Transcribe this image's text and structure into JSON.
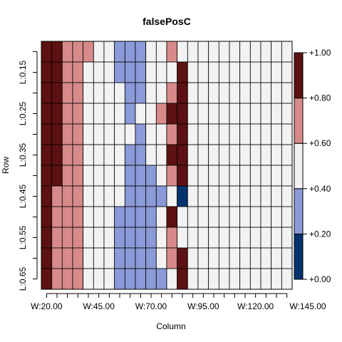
{
  "chart_data": {
    "type": "heatmap",
    "title": "falsePosC",
    "xlabel": "Column",
    "ylabel": "Row",
    "x_tick_labels": [
      "W:20.00",
      "W:45.00",
      "W:70.00",
      "W:95.00",
      "W:120.00",
      "W:145.00"
    ],
    "y_tick_labels": [
      "L:0.15",
      "L:0.25",
      "L:0.35",
      "L:0.45",
      "L:0.55",
      "L:0.65"
    ],
    "color_scale": {
      "breaks": [
        0.0,
        0.2,
        0.4,
        0.6,
        0.8,
        1.0
      ],
      "colors": [
        "#00336e",
        "#8b9ad8",
        "#f2f2f2",
        "#d88a8a",
        "#5c1212"
      ],
      "tick_labels": [
        "+0.00",
        "+0.20",
        "+0.40",
        "+0.60",
        "+0.80",
        "+1.00"
      ]
    },
    "n_columns": 24,
    "n_rows": 12,
    "rows": [
      [
        0.9,
        0.9,
        0.7,
        0.7,
        0.7,
        0.5,
        0.5,
        0.3,
        0.3,
        0.3,
        0.5,
        0.5,
        0.7,
        0.5,
        0.5,
        0.5,
        0.5,
        0.5,
        0.5,
        0.5,
        0.5,
        0.5,
        0.5,
        0.5
      ],
      [
        0.9,
        0.9,
        0.7,
        0.7,
        0.5,
        0.5,
        0.5,
        0.3,
        0.3,
        0.3,
        0.5,
        0.5,
        0.5,
        0.9,
        0.5,
        0.5,
        0.5,
        0.5,
        0.5,
        0.5,
        0.5,
        0.5,
        0.5,
        0.5
      ],
      [
        0.9,
        0.9,
        0.7,
        0.7,
        0.5,
        0.5,
        0.5,
        0.5,
        0.3,
        0.3,
        0.5,
        0.5,
        0.7,
        0.9,
        0.5,
        0.5,
        0.5,
        0.5,
        0.5,
        0.5,
        0.5,
        0.5,
        0.5,
        0.5
      ],
      [
        0.9,
        0.9,
        0.7,
        0.7,
        0.5,
        0.5,
        0.5,
        0.5,
        0.3,
        0.5,
        0.5,
        0.7,
        0.9,
        0.9,
        0.5,
        0.5,
        0.5,
        0.5,
        0.5,
        0.5,
        0.5,
        0.5,
        0.5,
        0.5
      ],
      [
        0.9,
        0.9,
        0.7,
        0.7,
        0.5,
        0.5,
        0.5,
        0.5,
        0.5,
        0.3,
        0.5,
        0.5,
        0.7,
        0.9,
        0.5,
        0.5,
        0.5,
        0.5,
        0.5,
        0.5,
        0.5,
        0.5,
        0.5,
        0.5
      ],
      [
        0.9,
        0.9,
        0.7,
        0.7,
        0.5,
        0.5,
        0.5,
        0.5,
        0.3,
        0.3,
        0.5,
        0.5,
        0.9,
        0.9,
        0.5,
        0.5,
        0.5,
        0.5,
        0.5,
        0.5,
        0.5,
        0.5,
        0.5,
        0.5
      ],
      [
        0.9,
        0.9,
        0.7,
        0.7,
        0.5,
        0.5,
        0.5,
        0.5,
        0.3,
        0.3,
        0.3,
        0.5,
        0.7,
        0.9,
        0.5,
        0.5,
        0.5,
        0.5,
        0.5,
        0.5,
        0.5,
        0.5,
        0.5,
        0.5
      ],
      [
        0.9,
        0.7,
        0.7,
        0.7,
        0.5,
        0.5,
        0.5,
        0.5,
        0.3,
        0.3,
        0.3,
        0.3,
        0.5,
        0.1,
        0.5,
        0.5,
        0.5,
        0.5,
        0.5,
        0.5,
        0.5,
        0.5,
        0.5,
        0.5
      ],
      [
        0.9,
        0.7,
        0.7,
        0.7,
        0.5,
        0.5,
        0.5,
        0.3,
        0.3,
        0.3,
        0.3,
        0.5,
        0.9,
        0.5,
        0.5,
        0.5,
        0.5,
        0.5,
        0.5,
        0.5,
        0.5,
        0.5,
        0.5,
        0.5
      ],
      [
        0.9,
        0.7,
        0.7,
        0.7,
        0.5,
        0.5,
        0.5,
        0.3,
        0.3,
        0.3,
        0.3,
        0.5,
        0.7,
        0.5,
        0.5,
        0.5,
        0.5,
        0.5,
        0.5,
        0.5,
        0.5,
        0.5,
        0.5,
        0.5
      ],
      [
        0.9,
        0.7,
        0.7,
        0.7,
        0.5,
        0.5,
        0.5,
        0.3,
        0.3,
        0.3,
        0.3,
        0.5,
        0.7,
        0.9,
        0.5,
        0.5,
        0.5,
        0.5,
        0.5,
        0.5,
        0.5,
        0.5,
        0.5,
        0.5
      ],
      [
        0.9,
        0.7,
        0.7,
        0.7,
        0.5,
        0.5,
        0.5,
        0.3,
        0.3,
        0.3,
        0.3,
        0.3,
        0.5,
        0.9,
        0.5,
        0.5,
        0.5,
        0.5,
        0.5,
        0.5,
        0.5,
        0.5,
        0.5,
        0.5
      ]
    ]
  }
}
